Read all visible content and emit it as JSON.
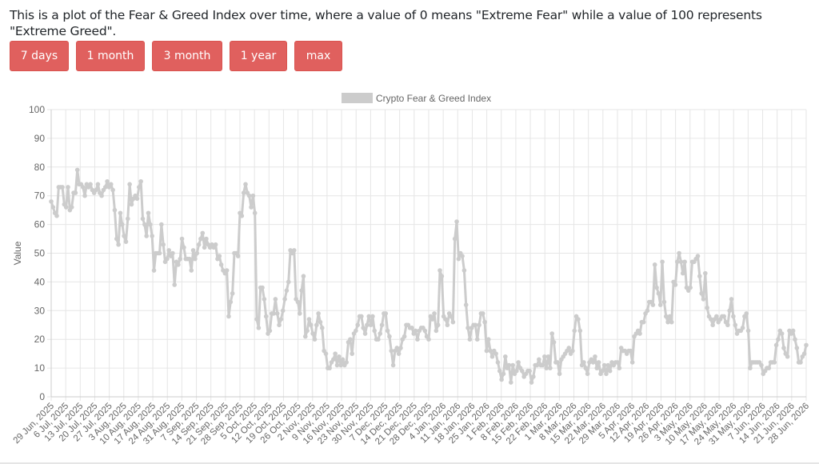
{
  "intro_text": "This is a plot of the Fear & Greed Index over time, where a value of 0 means \"Extreme Fear\" while a value of 100 represents \"Extreme Greed\".",
  "buttons": [
    "7 days",
    "1 month",
    "3 month",
    "1 year",
    "max"
  ],
  "colors": {
    "button": "#e0605e",
    "series": "#cccccc",
    "grid": "#e6e6e6",
    "axis_text": "#666666"
  },
  "chart_data": {
    "type": "line",
    "title": "",
    "xlabel": "",
    "ylabel": "Value",
    "ylim": [
      0,
      100
    ],
    "yticks": [
      0,
      10,
      20,
      30,
      40,
      50,
      60,
      70,
      80,
      90,
      100
    ],
    "legend_position": "top-center",
    "grid": true,
    "x_tick_labels": [
      "29 Jun, 2025",
      "6 Jul, 2025",
      "13 Jul, 2025",
      "20 Jul, 2025",
      "27 Jul, 2025",
      "3 Aug, 2025",
      "10 Aug, 2025",
      "17 Aug, 2025",
      "24 Aug, 2025",
      "31 Aug, 2025",
      "7 Sep, 2025",
      "14 Sep, 2025",
      "21 Sep, 2025",
      "28 Sep, 2025",
      "5 Oct, 2025",
      "12 Oct, 2025",
      "19 Oct, 2025",
      "26 Oct, 2025",
      "2 Nov, 2025",
      "9 Nov, 2025",
      "16 Nov, 2025",
      "23 Nov, 2025",
      "30 Nov, 2025",
      "7 Dec, 2025",
      "14 Dec, 2025",
      "21 Dec, 2025",
      "28 Dec, 2025",
      "4 Jan, 2026",
      "11 Jan, 2026",
      "18 Jan, 2026",
      "25 Jan, 2026",
      "1 Feb, 2026",
      "8 Feb, 2026",
      "15 Feb, 2026",
      "22 Feb, 2026",
      "1 Mar, 2026",
      "8 Mar, 2026",
      "15 Mar, 2026",
      "22 Mar, 2026",
      "29 Mar, 2026",
      "5 Apr, 2026",
      "12 Apr, 2026",
      "19 Apr, 2026",
      "26 Apr, 2026",
      "3 May, 2026",
      "10 May, 2026",
      "17 May, 2026",
      "24 May, 2026",
      "31 May, 2026",
      "7 Jun, 2026",
      "14 Jun, 2026",
      "21 Jun, 2026",
      "28 Jun, 2026"
    ],
    "series": [
      {
        "name": "Crypto Fear & Greed Index",
        "values": [
          68,
          66,
          64,
          63,
          73,
          73,
          73,
          67,
          66,
          73,
          65,
          66,
          71,
          71,
          79,
          74,
          74,
          73,
          70,
          74,
          73,
          74,
          72,
          71,
          72,
          74,
          71,
          70,
          72,
          73,
          75,
          73,
          74,
          72,
          65,
          55,
          53,
          64,
          60,
          56,
          54,
          62,
          74,
          67,
          69,
          70,
          69,
          73,
          75,
          62,
          60,
          56,
          64,
          60,
          56,
          44,
          50,
          50,
          50,
          60,
          53,
          47,
          48,
          51,
          49,
          50,
          39,
          47,
          46,
          48,
          55,
          52,
          48,
          48,
          48,
          44,
          51,
          48,
          50,
          53,
          55,
          57,
          52,
          55,
          53,
          52,
          53,
          52,
          53,
          48,
          49,
          46,
          44,
          43,
          44,
          28,
          33,
          36,
          50,
          50,
          49,
          64,
          63,
          71,
          74,
          71,
          70,
          66,
          70,
          64,
          27,
          24,
          38,
          38,
          34,
          28,
          22,
          23,
          29,
          29,
          34,
          29,
          25,
          27,
          30,
          34,
          37,
          40,
          51,
          50,
          51,
          34,
          33,
          29,
          37,
          42,
          21,
          23,
          27,
          25,
          22,
          20,
          25,
          29,
          26,
          24,
          16,
          15,
          10,
          10,
          12,
          13,
          15,
          11,
          14,
          11,
          13,
          11,
          12,
          19,
          20,
          15,
          22,
          23,
          25,
          28,
          28,
          24,
          22,
          25,
          28,
          25,
          28,
          23,
          20,
          20,
          22,
          25,
          29,
          29,
          23,
          21,
          16,
          11,
          16,
          17,
          15,
          17,
          20,
          21,
          25,
          25,
          24,
          24,
          22,
          23,
          20,
          23,
          24,
          24,
          23,
          21,
          20,
          28,
          27,
          29,
          23,
          25,
          44,
          42,
          28,
          27,
          25,
          29,
          28,
          26,
          55,
          61,
          48,
          50,
          49,
          44,
          32,
          24,
          20,
          24,
          25,
          25,
          20,
          25,
          29,
          29,
          26,
          16,
          20,
          16,
          14,
          16,
          15,
          12,
          9,
          6,
          8,
          14,
          10,
          11,
          5,
          11,
          8,
          9,
          12,
          10,
          9,
          7,
          8,
          9,
          9,
          5,
          7,
          11,
          11,
          13,
          11,
          11,
          14,
          10,
          14,
          10,
          22,
          19,
          12,
          12,
          8,
          13,
          14,
          15,
          16,
          17,
          15,
          16,
          23,
          28,
          27,
          23,
          11,
          12,
          10,
          8,
          12,
          13,
          12,
          14,
          10,
          12,
          8,
          9,
          11,
          8,
          11,
          9,
          12,
          11,
          12,
          12,
          10,
          17,
          16,
          16,
          15,
          16,
          16,
          12,
          21,
          22,
          23,
          22,
          26,
          26,
          29,
          30,
          33,
          33,
          32,
          46,
          38,
          36,
          32,
          47,
          33,
          28,
          26,
          28,
          26,
          40,
          39,
          47,
          50,
          47,
          43,
          47,
          38,
          37,
          38,
          47,
          47,
          48,
          49,
          42,
          36,
          34,
          43,
          31,
          28,
          27,
          25,
          27,
          28,
          26,
          27,
          28,
          28,
          26,
          25,
          30,
          34,
          28,
          25,
          22,
          23,
          23,
          24,
          28,
          29,
          23,
          10,
          12,
          12,
          12,
          12,
          12,
          11,
          8,
          9,
          10,
          10,
          12,
          12,
          12,
          18,
          20,
          23,
          22,
          17,
          15,
          14,
          23,
          22,
          23,
          20,
          17,
          12,
          12,
          14,
          15,
          18
        ]
      }
    ]
  }
}
